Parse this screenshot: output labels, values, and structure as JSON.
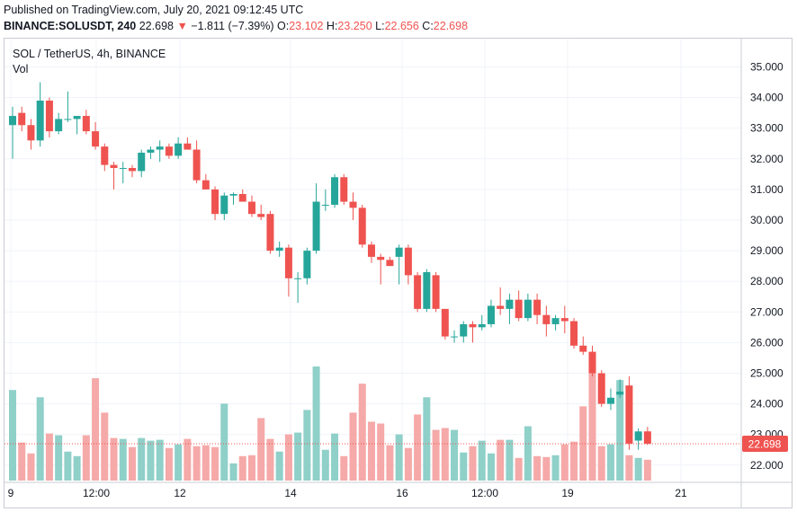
{
  "header": {
    "published": "Published on TradingView.com, July 20, 2021 09:12:45 UTC",
    "symbol": "BINANCE:SOLUSDT, 240",
    "last": "22.698",
    "change_arrow": "▼",
    "change": "−1.811 (−7.39%)",
    "o_label": "O:",
    "o_value": "23.102",
    "h_label": "H:",
    "h_value": "23.250",
    "l_label": "L:",
    "l_value": "22.656",
    "c_label": "C:",
    "c_value": "22.698"
  },
  "legend": {
    "title": "SOL / TetherUS, 4h, BINANCE",
    "vol": "Vol"
  },
  "colors": {
    "up": "#26a69a",
    "down": "#ef5350",
    "up_vol": "#8fd0c9",
    "down_vol": "#f5a9a8",
    "grid": "#f0f3fa",
    "axis_text": "#131722"
  },
  "chart_data": {
    "type": "candlestick",
    "ylim": [
      21.55,
      35.5
    ],
    "y_ticks": [
      "35.000",
      "34.000",
      "33.000",
      "32.000",
      "31.000",
      "30.000",
      "29.000",
      "28.000",
      "27.000",
      "26.000",
      "25.000",
      "24.000",
      "23.000",
      "22.000"
    ],
    "x_ticks": [
      "9",
      "12:00",
      "12",
      "14",
      "16",
      "12:00",
      "19",
      "21"
    ],
    "price_label": "22.698",
    "candles": [
      {
        "o": 33.1,
        "h": 33.7,
        "l": 32.0,
        "c": 33.4
      },
      {
        "o": 33.5,
        "h": 33.7,
        "l": 32.9,
        "c": 33.1
      },
      {
        "o": 33.1,
        "h": 33.3,
        "l": 32.3,
        "c": 32.6
      },
      {
        "o": 32.6,
        "h": 34.5,
        "l": 32.4,
        "c": 33.9
      },
      {
        "o": 33.9,
        "h": 34.0,
        "l": 32.7,
        "c": 32.9
      },
      {
        "o": 32.9,
        "h": 33.5,
        "l": 32.8,
        "c": 33.3
      },
      {
        "o": 33.3,
        "h": 34.2,
        "l": 33.2,
        "c": 33.3
      },
      {
        "o": 33.3,
        "h": 33.4,
        "l": 32.8,
        "c": 33.4
      },
      {
        "o": 33.4,
        "h": 33.6,
        "l": 32.8,
        "c": 32.9
      },
      {
        "o": 32.9,
        "h": 33.2,
        "l": 32.3,
        "c": 32.4
      },
      {
        "o": 32.4,
        "h": 32.5,
        "l": 31.6,
        "c": 31.8
      },
      {
        "o": 31.8,
        "h": 31.9,
        "l": 31.0,
        "c": 31.7
      },
      {
        "o": 31.7,
        "h": 31.9,
        "l": 31.2,
        "c": 31.7
      },
      {
        "o": 31.7,
        "h": 31.8,
        "l": 31.4,
        "c": 31.6
      },
      {
        "o": 31.6,
        "h": 32.3,
        "l": 31.4,
        "c": 32.2
      },
      {
        "o": 32.2,
        "h": 32.4,
        "l": 32.0,
        "c": 32.3
      },
      {
        "o": 32.3,
        "h": 32.6,
        "l": 31.9,
        "c": 32.4
      },
      {
        "o": 32.4,
        "h": 32.5,
        "l": 32.0,
        "c": 32.1
      },
      {
        "o": 32.1,
        "h": 32.7,
        "l": 32.0,
        "c": 32.5
      },
      {
        "o": 32.5,
        "h": 32.7,
        "l": 32.3,
        "c": 32.3
      },
      {
        "o": 32.3,
        "h": 32.6,
        "l": 31.2,
        "c": 31.3
      },
      {
        "o": 31.3,
        "h": 31.5,
        "l": 31.0,
        "c": 31.0
      },
      {
        "o": 31.0,
        "h": 31.1,
        "l": 30.0,
        "c": 30.2
      },
      {
        "o": 30.2,
        "h": 30.9,
        "l": 30.0,
        "c": 30.8
      },
      {
        "o": 30.8,
        "h": 30.9,
        "l": 30.5,
        "c": 30.85
      },
      {
        "o": 30.85,
        "h": 31.0,
        "l": 30.6,
        "c": 30.6
      },
      {
        "o": 30.6,
        "h": 30.8,
        "l": 30.1,
        "c": 30.2
      },
      {
        "o": 30.2,
        "h": 30.5,
        "l": 30.0,
        "c": 30.1
      },
      {
        "o": 30.2,
        "h": 30.3,
        "l": 28.9,
        "c": 29.0
      },
      {
        "o": 29.0,
        "h": 29.3,
        "l": 28.8,
        "c": 29.1
      },
      {
        "o": 29.1,
        "h": 29.2,
        "l": 27.5,
        "c": 28.1
      },
      {
        "o": 28.1,
        "h": 28.3,
        "l": 27.3,
        "c": 28.1
      },
      {
        "o": 28.1,
        "h": 29.1,
        "l": 27.9,
        "c": 29.0
      },
      {
        "o": 29.0,
        "h": 31.2,
        "l": 28.9,
        "c": 30.6
      },
      {
        "o": 30.5,
        "h": 31.0,
        "l": 30.3,
        "c": 30.5
      },
      {
        "o": 30.5,
        "h": 31.5,
        "l": 30.4,
        "c": 31.4
      },
      {
        "o": 31.4,
        "h": 31.5,
        "l": 30.5,
        "c": 30.6
      },
      {
        "o": 30.6,
        "h": 30.9,
        "l": 30.0,
        "c": 30.4
      },
      {
        "o": 30.4,
        "h": 30.5,
        "l": 29.1,
        "c": 29.2
      },
      {
        "o": 29.2,
        "h": 29.3,
        "l": 28.6,
        "c": 28.8
      },
      {
        "o": 28.8,
        "h": 28.9,
        "l": 27.9,
        "c": 28.7
      },
      {
        "o": 28.7,
        "h": 28.8,
        "l": 28.5,
        "c": 28.5
      },
      {
        "o": 28.8,
        "h": 29.2,
        "l": 27.9,
        "c": 29.1
      },
      {
        "o": 29.1,
        "h": 29.2,
        "l": 27.9,
        "c": 28.2
      },
      {
        "o": 28.2,
        "h": 28.3,
        "l": 27.0,
        "c": 27.1
      },
      {
        "o": 27.1,
        "h": 28.4,
        "l": 27.0,
        "c": 28.3
      },
      {
        "o": 28.2,
        "h": 28.3,
        "l": 27.0,
        "c": 27.1
      },
      {
        "o": 27.1,
        "h": 27.1,
        "l": 26.1,
        "c": 26.2
      },
      {
        "o": 26.2,
        "h": 26.4,
        "l": 26.0,
        "c": 26.2
      },
      {
        "o": 26.2,
        "h": 26.7,
        "l": 26.0,
        "c": 26.6
      },
      {
        "o": 26.6,
        "h": 26.7,
        "l": 26.0,
        "c": 26.5
      },
      {
        "o": 26.5,
        "h": 26.9,
        "l": 26.4,
        "c": 26.6
      },
      {
        "o": 26.6,
        "h": 27.4,
        "l": 26.5,
        "c": 27.2
      },
      {
        "o": 27.2,
        "h": 27.8,
        "l": 26.9,
        "c": 27.1
      },
      {
        "o": 27.1,
        "h": 27.6,
        "l": 26.6,
        "c": 27.4
      },
      {
        "o": 27.4,
        "h": 27.7,
        "l": 26.7,
        "c": 26.8
      },
      {
        "o": 26.8,
        "h": 27.6,
        "l": 26.7,
        "c": 27.4
      },
      {
        "o": 27.4,
        "h": 27.6,
        "l": 26.6,
        "c": 26.9
      },
      {
        "o": 26.9,
        "h": 27.2,
        "l": 26.2,
        "c": 26.6
      },
      {
        "o": 26.6,
        "h": 26.9,
        "l": 26.4,
        "c": 26.8
      },
      {
        "o": 26.8,
        "h": 27.2,
        "l": 26.3,
        "c": 26.7
      },
      {
        "o": 26.7,
        "h": 26.8,
        "l": 25.8,
        "c": 25.9
      },
      {
        "o": 25.9,
        "h": 26.2,
        "l": 25.6,
        "c": 25.7
      },
      {
        "o": 25.7,
        "h": 25.9,
        "l": 24.9,
        "c": 25.0
      },
      {
        "o": 25.0,
        "h": 25.1,
        "l": 23.9,
        "c": 24.0
      },
      {
        "o": 24.0,
        "h": 24.5,
        "l": 23.8,
        "c": 24.2
      },
      {
        "o": 24.3,
        "h": 24.8,
        "l": 24.2,
        "c": 24.4
      },
      {
        "o": 24.6,
        "h": 24.9,
        "l": 22.5,
        "c": 22.7
      },
      {
        "o": 22.8,
        "h": 23.2,
        "l": 22.5,
        "c": 23.1
      },
      {
        "o": 23.102,
        "h": 23.25,
        "l": 22.656,
        "c": 22.698
      }
    ],
    "volume": [
      1.0,
      0.42,
      0.3,
      0.92,
      0.52,
      0.5,
      0.32,
      0.27,
      0.5,
      1.13,
      0.75,
      0.47,
      0.46,
      0.37,
      0.47,
      0.44,
      0.45,
      0.36,
      0.4,
      0.46,
      0.38,
      0.39,
      0.37,
      0.85,
      0.19,
      0.27,
      0.28,
      0.69,
      0.46,
      0.32,
      0.51,
      0.53,
      0.78,
      1.26,
      0.34,
      0.52,
      0.27,
      0.75,
      1.07,
      0.65,
      0.63,
      0.39,
      0.51,
      0.36,
      0.73,
      0.92,
      0.56,
      0.58,
      0.56,
      0.31,
      0.38,
      0.44,
      0.3,
      0.45,
      0.45,
      0.25,
      0.6,
      0.27,
      0.26,
      0.28,
      0.4,
      0.43,
      0.82,
      1.24,
      0.38,
      0.4,
      1.11,
      0.28,
      0.25,
      0.23
    ]
  }
}
